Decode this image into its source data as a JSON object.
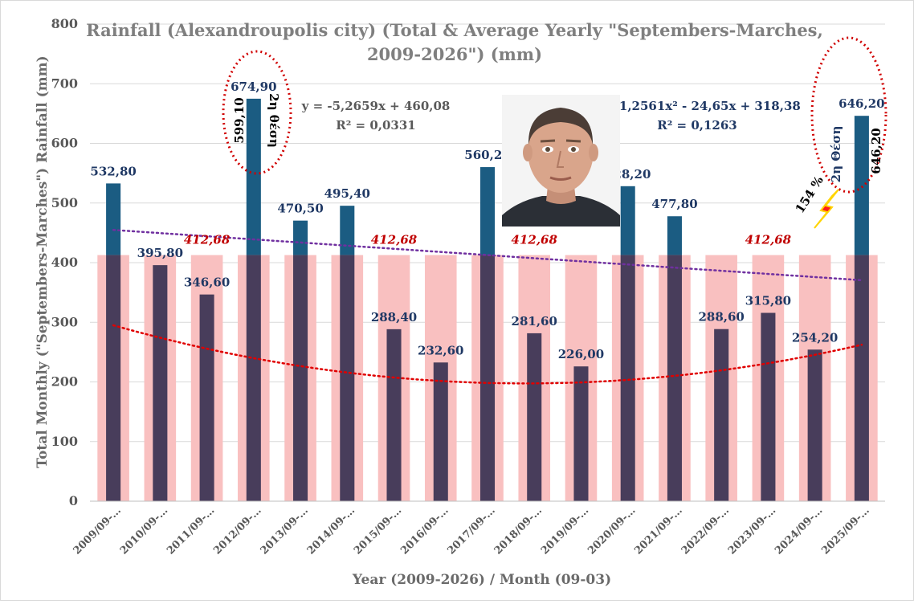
{
  "chart_data": {
    "type": "bar",
    "title_line1": "Rainfall (Alexandroupolis city) (Total & Average Yearly \"Septembers-Marches,",
    "title_line2": "2009-2026\") (mm)",
    "xlabel": "Year (2009-2026) / Month (09-03)",
    "ylabel": "Total Monthly (\"Septembers-Marches\") Rainfall (mm)",
    "ylim": [
      0,
      800
    ],
    "yticks": [
      "0",
      "100",
      "200",
      "300",
      "400",
      "500",
      "600",
      "700",
      "800"
    ],
    "categories": [
      "2009/09-…",
      "2010/09-…",
      "2011/09-…",
      "2012/09-…",
      "2013/09-…",
      "2014/09-…",
      "2015/09-…",
      "2016/09-…",
      "2017/09-…",
      "2018/09-…",
      "2019/09-…",
      "2020/09-…",
      "2021/09-…",
      "2022/09-…",
      "2023/09-…",
      "2024/09-…",
      "2025/09-…"
    ],
    "series": [
      {
        "values": [
          532.8,
          395.8,
          346.6,
          674.9,
          470.5,
          495.4,
          288.4,
          232.6,
          560.2,
          281.6,
          226.0,
          528.2,
          477.8,
          288.6,
          315.8,
          254.2,
          646.2
        ],
        "labels": [
          "532,80",
          "395,80",
          "346,60",
          "674,90",
          "470,50",
          "495,40",
          "288,40",
          "232,60",
          "560,20",
          "281,60",
          "226,00",
          "528,20",
          "477,80",
          "288,60",
          "315,80",
          "254,20",
          "646,20"
        ]
      },
      {
        "value": 412.68,
        "labels": [
          "412,68",
          "412,68",
          "412,68",
          "412,68"
        ]
      }
    ],
    "trendlines": [
      {
        "type": "linear",
        "equation": "y = -5,2659x + 460,08",
        "r2": "R² = 0,0331",
        "slope": -5.2659,
        "intercept": 460.08
      },
      {
        "type": "polynomial",
        "equation": "y = 1,2561x² - 24,65x + 318,38",
        "r2": "R² = 0,1263",
        "a": 1.2561,
        "b": -24.65,
        "c": 318.38
      }
    ],
    "annotations": {
      "rank_2012_value": "599,10",
      "rank_2012_text": "2η θέση",
      "rank_2025_value": "646,20",
      "rank_2025_text": "2η Θέση",
      "percent": "154 %"
    },
    "colors": {
      "above_avg": "#1b5c82",
      "below_avg": "#483d5b",
      "avg_bar": "#f9c0c0",
      "linear_trend": "#7030a0",
      "poly_trend": "#e00000",
      "ellipse": "#d00000",
      "lightning": "#ff0000"
    }
  }
}
